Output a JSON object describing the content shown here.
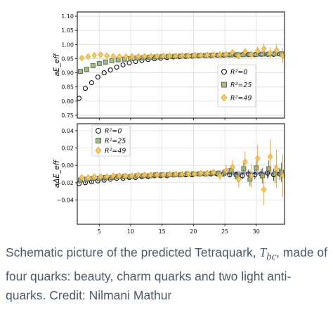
{
  "chart_data": [
    {
      "type": "scatter",
      "ylabel": "aE_eff",
      "xlim": [
        1.5,
        34.5
      ],
      "ylim": [
        0.74,
        1.115
      ],
      "yticks": [
        "0.75",
        "0.80",
        "0.85",
        "0.90",
        "0.95",
        "1.00",
        "1.05",
        "1.10"
      ],
      "grid": true,
      "legend_position": "center-right",
      "series": [
        {
          "name": "R²=0",
          "marker": "circle",
          "color": "#111111",
          "x": [
            2,
            3,
            4,
            5,
            6,
            7,
            8,
            9,
            10,
            11,
            12,
            13,
            14,
            15,
            16,
            17,
            18,
            19,
            20,
            21,
            22,
            23,
            24,
            25,
            26,
            27,
            28,
            29,
            30,
            31,
            32,
            33,
            34
          ],
          "y": [
            0.81,
            0.845,
            0.865,
            0.885,
            0.9,
            0.91,
            0.92,
            0.928,
            0.935,
            0.94,
            0.944,
            0.947,
            0.95,
            0.952,
            0.954,
            0.956,
            0.957,
            0.958,
            0.959,
            0.96,
            0.961,
            0.961,
            0.962,
            0.962,
            0.963,
            0.963,
            0.964,
            0.964,
            0.964,
            0.965,
            0.965,
            0.965,
            0.966
          ]
        },
        {
          "name": "R²=25",
          "marker": "square",
          "color": "#5a6e46",
          "x": [
            2,
            3,
            4,
            5,
            6,
            7,
            8,
            9,
            10,
            11,
            12,
            13,
            14,
            15,
            16,
            17,
            18,
            19,
            20,
            21,
            22,
            23,
            24,
            25,
            26,
            27,
            28,
            29,
            30,
            31,
            32,
            33,
            34
          ],
          "y": [
            0.905,
            0.912,
            0.925,
            0.933,
            0.938,
            0.943,
            0.946,
            0.948,
            0.95,
            0.952,
            0.953,
            0.955,
            0.956,
            0.957,
            0.958,
            0.958,
            0.959,
            0.96,
            0.96,
            0.961,
            0.961,
            0.962,
            0.962,
            0.963,
            0.963,
            0.964,
            0.964,
            0.965,
            0.965,
            0.966,
            0.966,
            0.967,
            0.967
          ]
        },
        {
          "name": "R²=49",
          "marker": "diamond",
          "color": "#e8a830",
          "x": [
            2,
            3,
            4,
            5,
            6,
            7,
            8,
            9,
            10,
            11,
            12,
            13,
            14,
            15,
            16,
            17,
            18,
            19,
            20,
            21,
            22,
            23,
            24,
            25,
            26,
            27,
            28,
            29,
            30,
            31,
            32,
            33,
            34
          ],
          "y": [
            0.952,
            0.957,
            0.962,
            0.964,
            0.96,
            0.958,
            0.957,
            0.957,
            0.958,
            0.958,
            0.958,
            0.959,
            0.959,
            0.96,
            0.96,
            0.96,
            0.961,
            0.961,
            0.962,
            0.962,
            0.963,
            0.964,
            0.965,
            0.966,
            0.972,
            0.96,
            0.975,
            0.965,
            0.978,
            0.985,
            0.97,
            0.98,
            0.96
          ],
          "err": [
            0.002,
            0.002,
            0.002,
            0.002,
            0.002,
            0.002,
            0.002,
            0.002,
            0.002,
            0.002,
            0.002,
            0.002,
            0.002,
            0.003,
            0.003,
            0.003,
            0.003,
            0.003,
            0.003,
            0.004,
            0.004,
            0.004,
            0.005,
            0.006,
            0.008,
            0.01,
            0.012,
            0.014,
            0.016,
            0.018,
            0.02,
            0.022,
            0.025
          ]
        }
      ]
    },
    {
      "type": "scatter",
      "ylabel": "aΔE_eff",
      "xlim": [
        1.5,
        34.5
      ],
      "ylim": [
        -0.068,
        0.048
      ],
      "xticks": [
        "5",
        "10",
        "15",
        "20",
        "25",
        "30"
      ],
      "yticks": [
        "0.04",
        "0.02",
        "0.00",
        "−0.02",
        "−0.04"
      ],
      "grid": true,
      "legend_position": "top-left",
      "band": {
        "x": [
          25,
          34.5
        ],
        "y": [
          -0.0105,
          -0.0075
        ],
        "color": "#3b45c8"
      },
      "series": [
        {
          "name": "R²=0",
          "marker": "circle",
          "color": "#111111",
          "x": [
            2,
            3,
            4,
            5,
            6,
            7,
            8,
            9,
            10,
            11,
            12,
            13,
            14,
            15,
            16,
            17,
            18,
            19,
            20,
            21,
            22,
            23,
            24,
            25,
            26,
            27,
            28,
            29,
            30,
            31,
            32,
            33,
            34
          ],
          "y": [
            -0.021,
            -0.02,
            -0.019,
            -0.018,
            -0.017,
            -0.016,
            -0.015,
            -0.015,
            -0.014,
            -0.014,
            -0.013,
            -0.013,
            -0.012,
            -0.012,
            -0.012,
            -0.011,
            -0.011,
            -0.011,
            -0.011,
            -0.01,
            -0.01,
            -0.01,
            -0.01,
            -0.01,
            -0.011,
            -0.011,
            -0.012,
            -0.01,
            -0.011,
            -0.01,
            -0.009,
            -0.011,
            -0.01
          ],
          "err": [
            0.001,
            0.001,
            0.001,
            0.001,
            0.001,
            0.001,
            0.001,
            0.001,
            0.001,
            0.001,
            0.001,
            0.001,
            0.001,
            0.001,
            0.001,
            0.001,
            0.001,
            0.001,
            0.001,
            0.001,
            0.001,
            0.002,
            0.002,
            0.003,
            0.003,
            0.004,
            0.004,
            0.005,
            0.005,
            0.006,
            0.006,
            0.007,
            0.007
          ]
        },
        {
          "name": "R²=25",
          "marker": "square",
          "color": "#5a6e46",
          "x": [
            2,
            3,
            4,
            5,
            6,
            7,
            8,
            9,
            10,
            11,
            12,
            13,
            14,
            15,
            16,
            17,
            18,
            19,
            20,
            21,
            22,
            23,
            24,
            25,
            26,
            27,
            28,
            29,
            30,
            31,
            32,
            33,
            34
          ],
          "y": [
            -0.017,
            -0.016,
            -0.015,
            -0.015,
            -0.014,
            -0.014,
            -0.013,
            -0.013,
            -0.013,
            -0.012,
            -0.012,
            -0.012,
            -0.011,
            -0.011,
            -0.011,
            -0.011,
            -0.011,
            -0.01,
            -0.01,
            -0.01,
            -0.01,
            -0.009,
            -0.009,
            -0.008,
            -0.006,
            -0.013,
            -0.004,
            -0.016,
            -0.003,
            -0.012,
            -0.004,
            -0.01,
            -0.008
          ],
          "err": [
            0.001,
            0.001,
            0.001,
            0.001,
            0.001,
            0.001,
            0.001,
            0.001,
            0.001,
            0.001,
            0.001,
            0.001,
            0.001,
            0.001,
            0.001,
            0.001,
            0.002,
            0.002,
            0.002,
            0.002,
            0.002,
            0.003,
            0.003,
            0.004,
            0.005,
            0.006,
            0.007,
            0.008,
            0.008,
            0.009,
            0.01,
            0.01,
            0.011
          ]
        },
        {
          "name": "R²=49",
          "marker": "diamond",
          "color": "#e8a830",
          "x": [
            2,
            3,
            4,
            5,
            6,
            7,
            8,
            9,
            10,
            11,
            12,
            13,
            14,
            15,
            16,
            17,
            18,
            19,
            20,
            21,
            22,
            23,
            24,
            25,
            26,
            27,
            28,
            29,
            30,
            31,
            32,
            33,
            34
          ],
          "y": [
            -0.014,
            -0.014,
            -0.013,
            -0.013,
            -0.013,
            -0.012,
            -0.012,
            -0.012,
            -0.012,
            -0.011,
            -0.011,
            -0.011,
            -0.011,
            -0.011,
            -0.01,
            -0.01,
            -0.01,
            -0.01,
            -0.01,
            -0.009,
            -0.009,
            -0.008,
            -0.012,
            -0.006,
            -0.002,
            -0.016,
            0.004,
            -0.012,
            0.008,
            -0.028,
            0.01,
            -0.004,
            -0.012
          ],
          "err": [
            0.001,
            0.001,
            0.001,
            0.001,
            0.001,
            0.001,
            0.001,
            0.001,
            0.001,
            0.001,
            0.001,
            0.001,
            0.001,
            0.001,
            0.002,
            0.002,
            0.002,
            0.002,
            0.002,
            0.002,
            0.003,
            0.004,
            0.005,
            0.006,
            0.008,
            0.01,
            0.012,
            0.014,
            0.016,
            0.018,
            0.02,
            0.022,
            0.024
          ]
        }
      ]
    }
  ],
  "caption": {
    "line1_pre": "Schematic picture of the predicted Tetraquark, ",
    "symbol_base": "T",
    "symbol_sub": "bc",
    "line1_post": ",",
    "rest": " made of four quarks: beauty, charm quarks and two light anti-quarks. Credit: Nilmani Mathur"
  }
}
